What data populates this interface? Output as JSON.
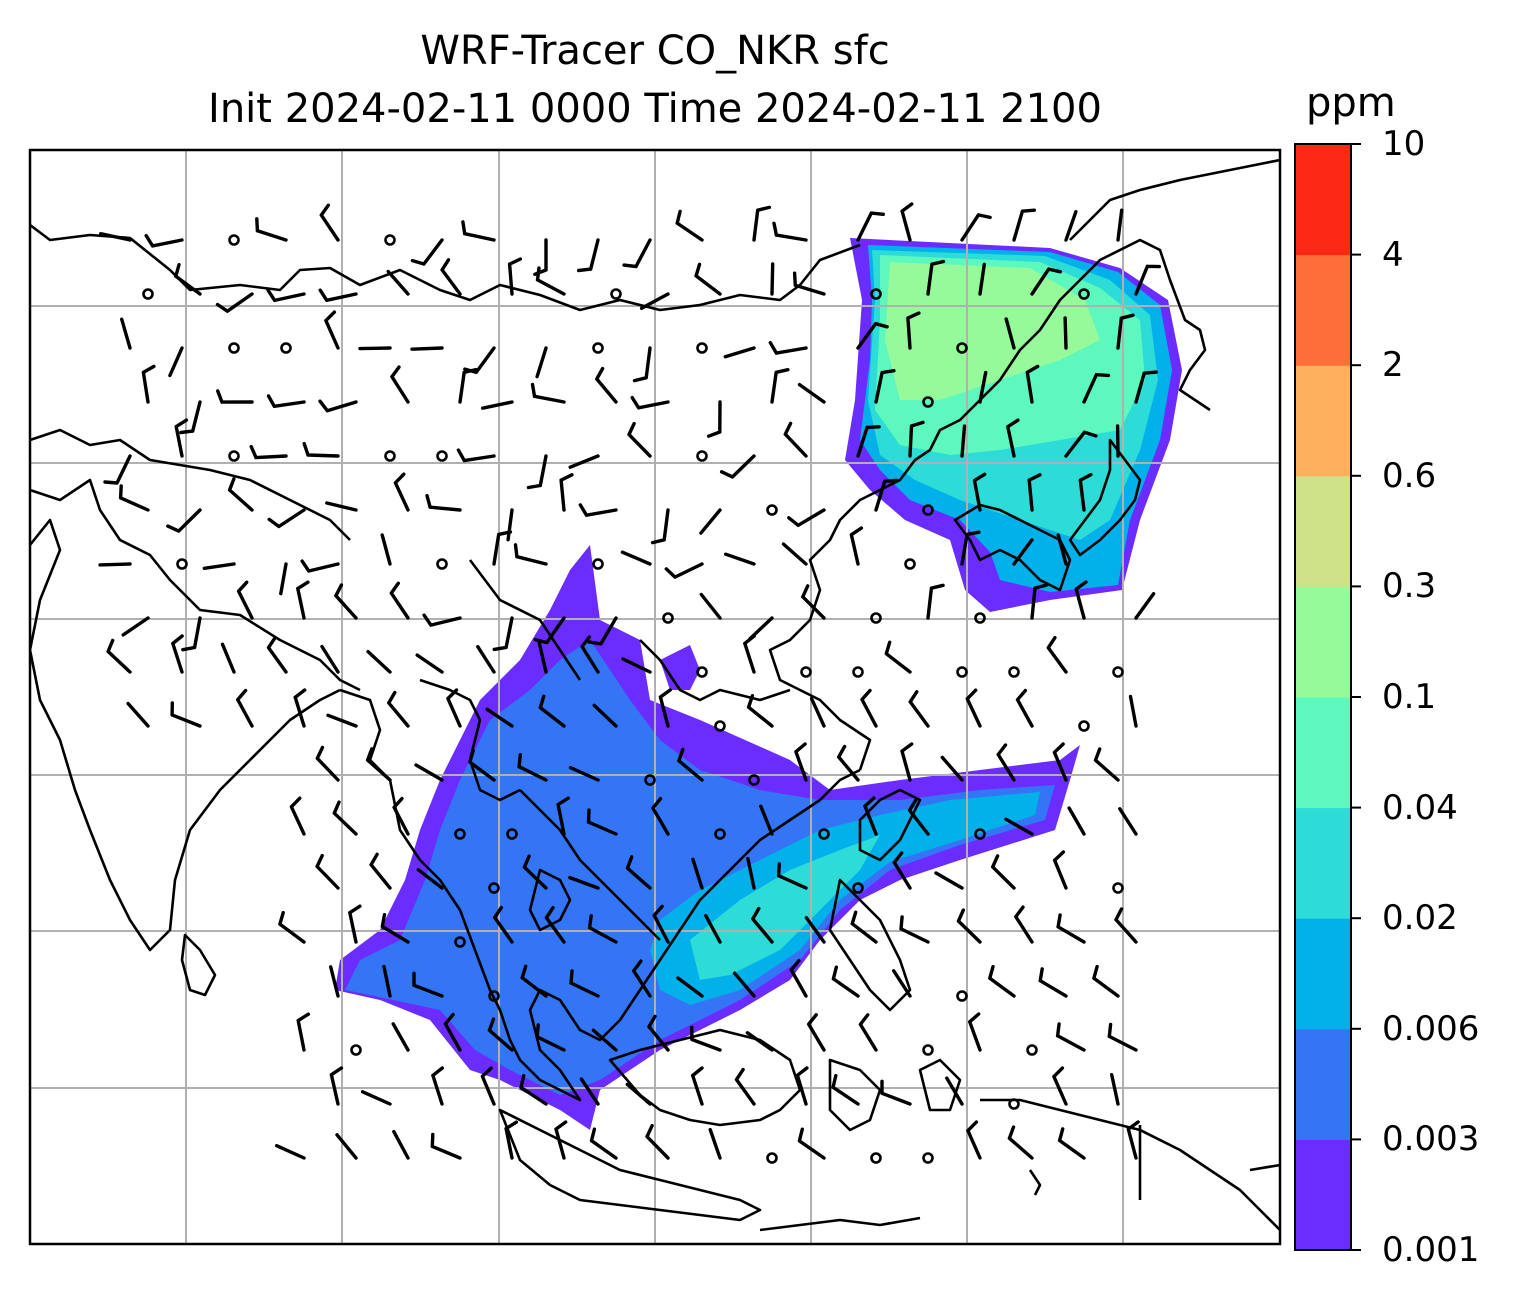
{
  "title": {
    "line1": "WRF-Tracer CO_NKR sfc",
    "line2": "Init 2024-02-11 0000 Time 2024-02-11 2100"
  },
  "colorbar": {
    "unit": "ppm",
    "levels": [
      "0.001",
      "0.003",
      "0.006",
      "0.02",
      "0.04",
      "0.1",
      "0.3",
      "0.6",
      "2",
      "4",
      "10"
    ],
    "colors": [
      "#6a2cff",
      "#3375f5",
      "#03b1ea",
      "#2ddcd6",
      "#5cf8be",
      "#96f99a",
      "#cfe28a",
      "#feb05f",
      "#fe6e3b",
      "#fe2816"
    ]
  },
  "map": {
    "type": "contour-filled tracer concentration with wind barbs and coastlines",
    "gridlines": true,
    "tracer_fill": "CO_NKR surface concentration",
    "overlays": [
      "coastlines",
      "country borders",
      "wind barbs",
      "calm-wind circles"
    ]
  }
}
